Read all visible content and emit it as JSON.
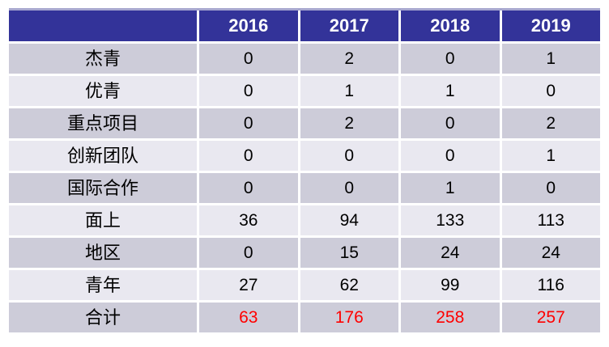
{
  "chart_data": {
    "type": "table",
    "title": "",
    "columns": [
      "2016",
      "2017",
      "2018",
      "2019"
    ],
    "corner_label": "",
    "row_labels": [
      "杰青",
      "优青",
      "重点项目",
      "创新团队",
      "国际合作",
      "面上",
      "地区",
      "青年",
      "合计"
    ],
    "values": [
      [
        0,
        2,
        0,
        1
      ],
      [
        0,
        1,
        1,
        0
      ],
      [
        0,
        2,
        0,
        2
      ],
      [
        0,
        0,
        0,
        1
      ],
      [
        0,
        0,
        1,
        0
      ],
      [
        36,
        94,
        133,
        113
      ],
      [
        0,
        15,
        24,
        24
      ],
      [
        27,
        62,
        99,
        116
      ],
      [
        63,
        176,
        258,
        257
      ]
    ],
    "total_row_label": "合计",
    "notes": "Total (合计) row values rendered in red; header row white-on-indigo; body rows alternate gray shades with white separators"
  },
  "colors": {
    "header_bg": "#333399",
    "header_text": "#ffffff",
    "row_dark": "#cdccd9",
    "row_light": "#e9e8f0",
    "body_text": "#000000",
    "total_value_color": "#ff0000",
    "top_border": "#a7a7cf",
    "background": "#ffffff"
  }
}
